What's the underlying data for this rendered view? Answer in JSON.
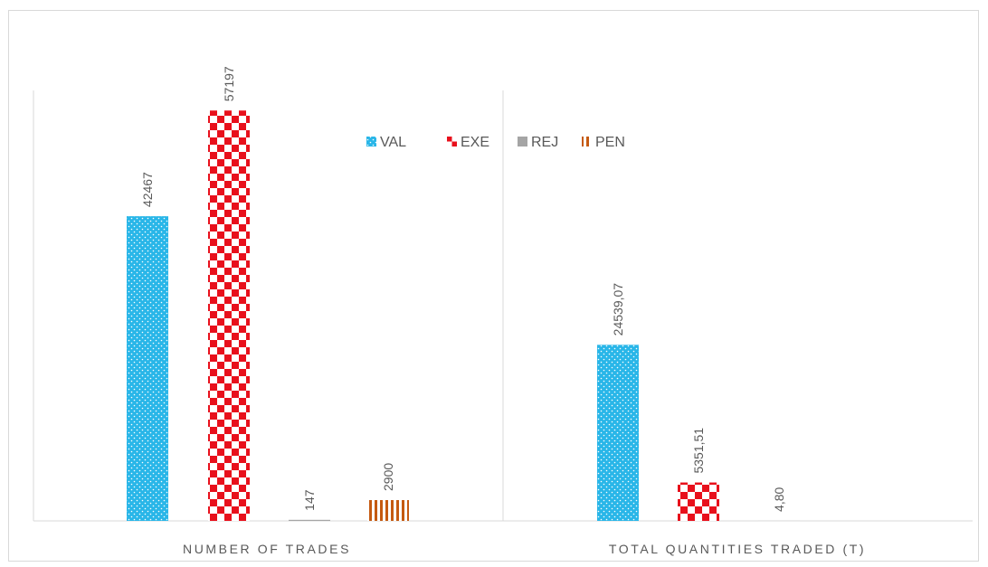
{
  "colors": {
    "VAL": "#29B6E8",
    "EXE": "#E8101C",
    "REJ": "#A5A5A5",
    "PEN": "#C55A11",
    "axis": "#d9d9d9",
    "text": "#595959"
  },
  "chart_data": [
    {
      "type": "bar",
      "category": "NUMBER OF TRADES",
      "series": [
        {
          "name": "VAL",
          "value": 42467,
          "label": "42467"
        },
        {
          "name": "EXE",
          "value": 57197,
          "label": "57197"
        },
        {
          "name": "REJ",
          "value": 147,
          "label": "147"
        },
        {
          "name": "PEN",
          "value": 2900,
          "label": "2900"
        }
      ]
    },
    {
      "type": "bar",
      "category": "TOTAL QUANTITIES TRADED (T)",
      "series": [
        {
          "name": "VAL",
          "value": 24539.07,
          "label": "24539,07"
        },
        {
          "name": "EXE",
          "value": 5351.51,
          "label": "5351,51"
        },
        {
          "name": "REJ",
          "value": 4.8,
          "label": "4,80"
        }
      ]
    }
  ],
  "legend": {
    "placement": "top-center",
    "items": [
      {
        "name": "VAL",
        "icon": "dotted-square"
      },
      {
        "name": "EXE",
        "icon": "checker-square"
      },
      {
        "name": "REJ",
        "icon": "solid-square"
      },
      {
        "name": "PEN",
        "icon": "vertical-stripes-square"
      }
    ]
  }
}
